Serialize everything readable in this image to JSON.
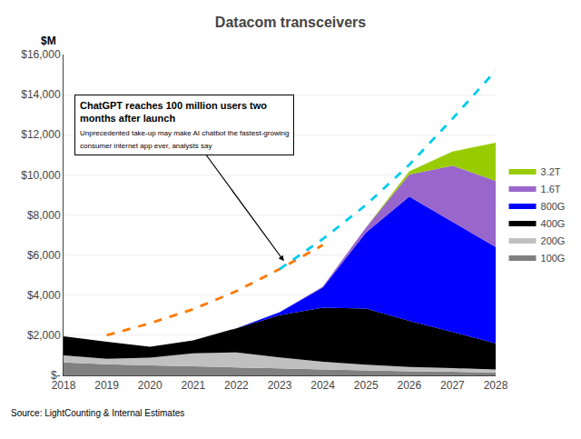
{
  "chart_data": {
    "type": "area",
    "title": "Datacom transceivers",
    "ylabel": "$M",
    "source": "Source: LightCounting & Internal Estimates",
    "stacked": true,
    "x": [
      2018,
      2019,
      2020,
      2021,
      2022,
      2023,
      2024,
      2025,
      2026,
      2027,
      2028
    ],
    "series": [
      {
        "name": "100G",
        "color": "#808080",
        "values": [
          650,
          550,
          500,
          450,
          400,
          350,
          300,
          250,
          200,
          180,
          150
        ]
      },
      {
        "name": "200G",
        "color": "#c0c0c0",
        "values": [
          350,
          280,
          380,
          650,
          750,
          550,
          380,
          280,
          220,
          180,
          150
        ]
      },
      {
        "name": "400G",
        "color": "#000000",
        "values": [
          950,
          850,
          550,
          650,
          1200,
          2100,
          2700,
          2800,
          2300,
          1800,
          1300
        ]
      },
      {
        "name": "800G",
        "color": "#0000ff",
        "values": [
          0,
          0,
          0,
          0,
          0,
          150,
          1000,
          3800,
          6200,
          5500,
          4800
        ]
      },
      {
        "name": "1.6T",
        "color": "#9966cc",
        "values": [
          0,
          0,
          0,
          0,
          0,
          0,
          50,
          250,
          1100,
          2800,
          3300
        ]
      },
      {
        "name": "3.2T",
        "color": "#99cc00",
        "values": [
          0,
          0,
          0,
          0,
          0,
          0,
          0,
          0,
          150,
          700,
          1900
        ]
      },
      {
        "type": "line",
        "color": "#ff7700",
        "line_style": "dashed",
        "x": [
          2019,
          2020,
          2021,
          2022,
          2023,
          2024
        ],
        "values": [
          2000,
          2600,
          3300,
          4200,
          5300,
          6500
        ]
      },
      {
        "type": "line",
        "color": "#00ccee",
        "line_style": "dashed",
        "x": [
          2023,
          2024,
          2025,
          2026,
          2027,
          2028
        ],
        "values": [
          5300,
          6800,
          8500,
          10500,
          12800,
          15200
        ]
      }
    ],
    "xlim": [
      2018,
      2028
    ],
    "xticks": [
      2018,
      2019,
      2020,
      2021,
      2022,
      2023,
      2024,
      2025,
      2026,
      2027,
      2028
    ],
    "ylim": [
      0,
      16000
    ],
    "yticks": [
      {
        "value": 0,
        "label": "$-"
      },
      {
        "value": 2000,
        "label": "$2,000"
      },
      {
        "value": 4000,
        "label": "$4,000"
      },
      {
        "value": 6000,
        "label": "$6,000"
      },
      {
        "value": 8000,
        "label": "$8,000"
      },
      {
        "value": 10000,
        "label": "$10,000"
      },
      {
        "value": 12000,
        "label": "$12,000"
      },
      {
        "value": 14000,
        "label": "$14,000"
      },
      {
        "value": 16000,
        "label": "$16,000"
      }
    ],
    "grid": true,
    "legend": "right",
    "annotations": [
      {
        "title": "ChatGPT reaches 100 million users two\nmonths after launch",
        "text": "Unprecedented take-up may make AI chatbot the fastest-growing\nconsumer internet app ever, analysts say",
        "x": 2023.1,
        "y": 5700
      }
    ]
  }
}
